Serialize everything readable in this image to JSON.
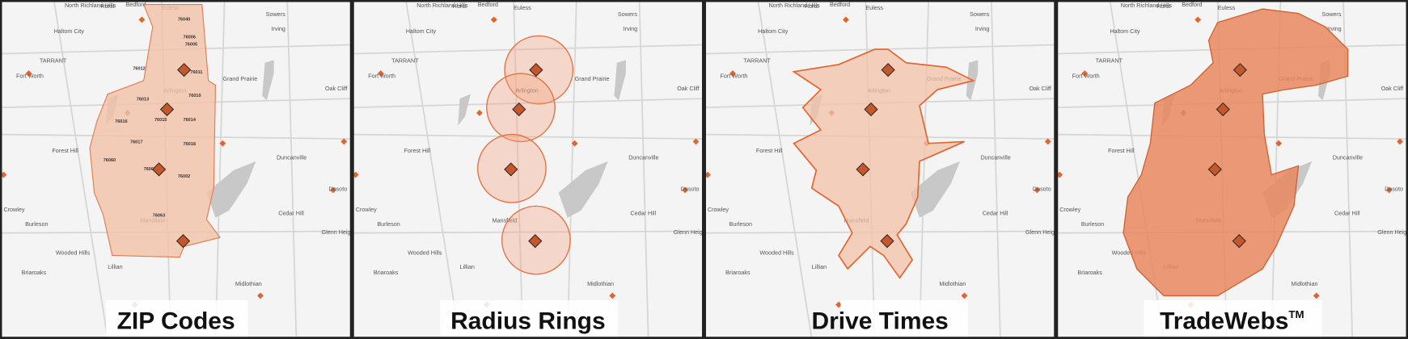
{
  "places": [
    "North Richland Hills",
    "Hurst",
    "Bedford",
    "Euless",
    "Sowers",
    "Haltom City",
    "Irving",
    "TARRANT",
    "Fort Worth",
    "Arlington",
    "Grand Prairie",
    "Oak Cliff",
    "Forest Hill",
    "Duncanville",
    "Desoto",
    "Crowley",
    "Burleson",
    "Cedar Hill",
    "Glenn Heights",
    "Mansfield",
    "Wooded Hills",
    "Briaroaks",
    "Lillian",
    "Midlothian"
  ],
  "zip_codes": [
    "76040",
    "76006",
    "76005",
    "76011",
    "76012",
    "76010",
    "76013",
    "76015",
    "76016",
    "76014",
    "76017",
    "76018",
    "76060",
    "76001",
    "76002",
    "76063"
  ],
  "panels": [
    {
      "caption": "ZIP Codes"
    },
    {
      "caption": "Radius Rings"
    },
    {
      "caption": "Drive Times"
    },
    {
      "caption": "TradeWebs",
      "caption_mark": "TM"
    }
  ]
}
